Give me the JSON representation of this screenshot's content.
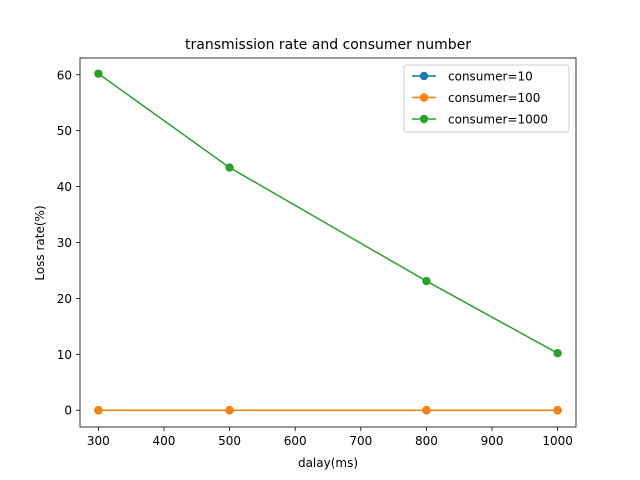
{
  "chart_data": {
    "type": "line",
    "title": "transmission rate and consumer number",
    "xlabel": "dalay(ms)",
    "ylabel": "Loss rate(%)",
    "xlim": [
      272,
      1028
    ],
    "ylim": [
      -3,
      63
    ],
    "xticks": [
      300,
      400,
      500,
      600,
      700,
      800,
      900,
      1000
    ],
    "yticks": [
      0,
      10,
      20,
      30,
      40,
      50,
      60
    ],
    "x": [
      300,
      500,
      800,
      1000
    ],
    "legend_position": "top-right",
    "grid": false,
    "series": [
      {
        "name": "consumer=10",
        "color": "#1f77b4",
        "values": [
          0,
          0,
          0,
          0
        ]
      },
      {
        "name": "consumer=100",
        "color": "#ff7f0e",
        "values": [
          0,
          0,
          0,
          0
        ]
      },
      {
        "name": "consumer=1000",
        "color": "#2ca02c",
        "values": [
          60.2,
          43.4,
          23.1,
          10.2
        ]
      }
    ]
  }
}
